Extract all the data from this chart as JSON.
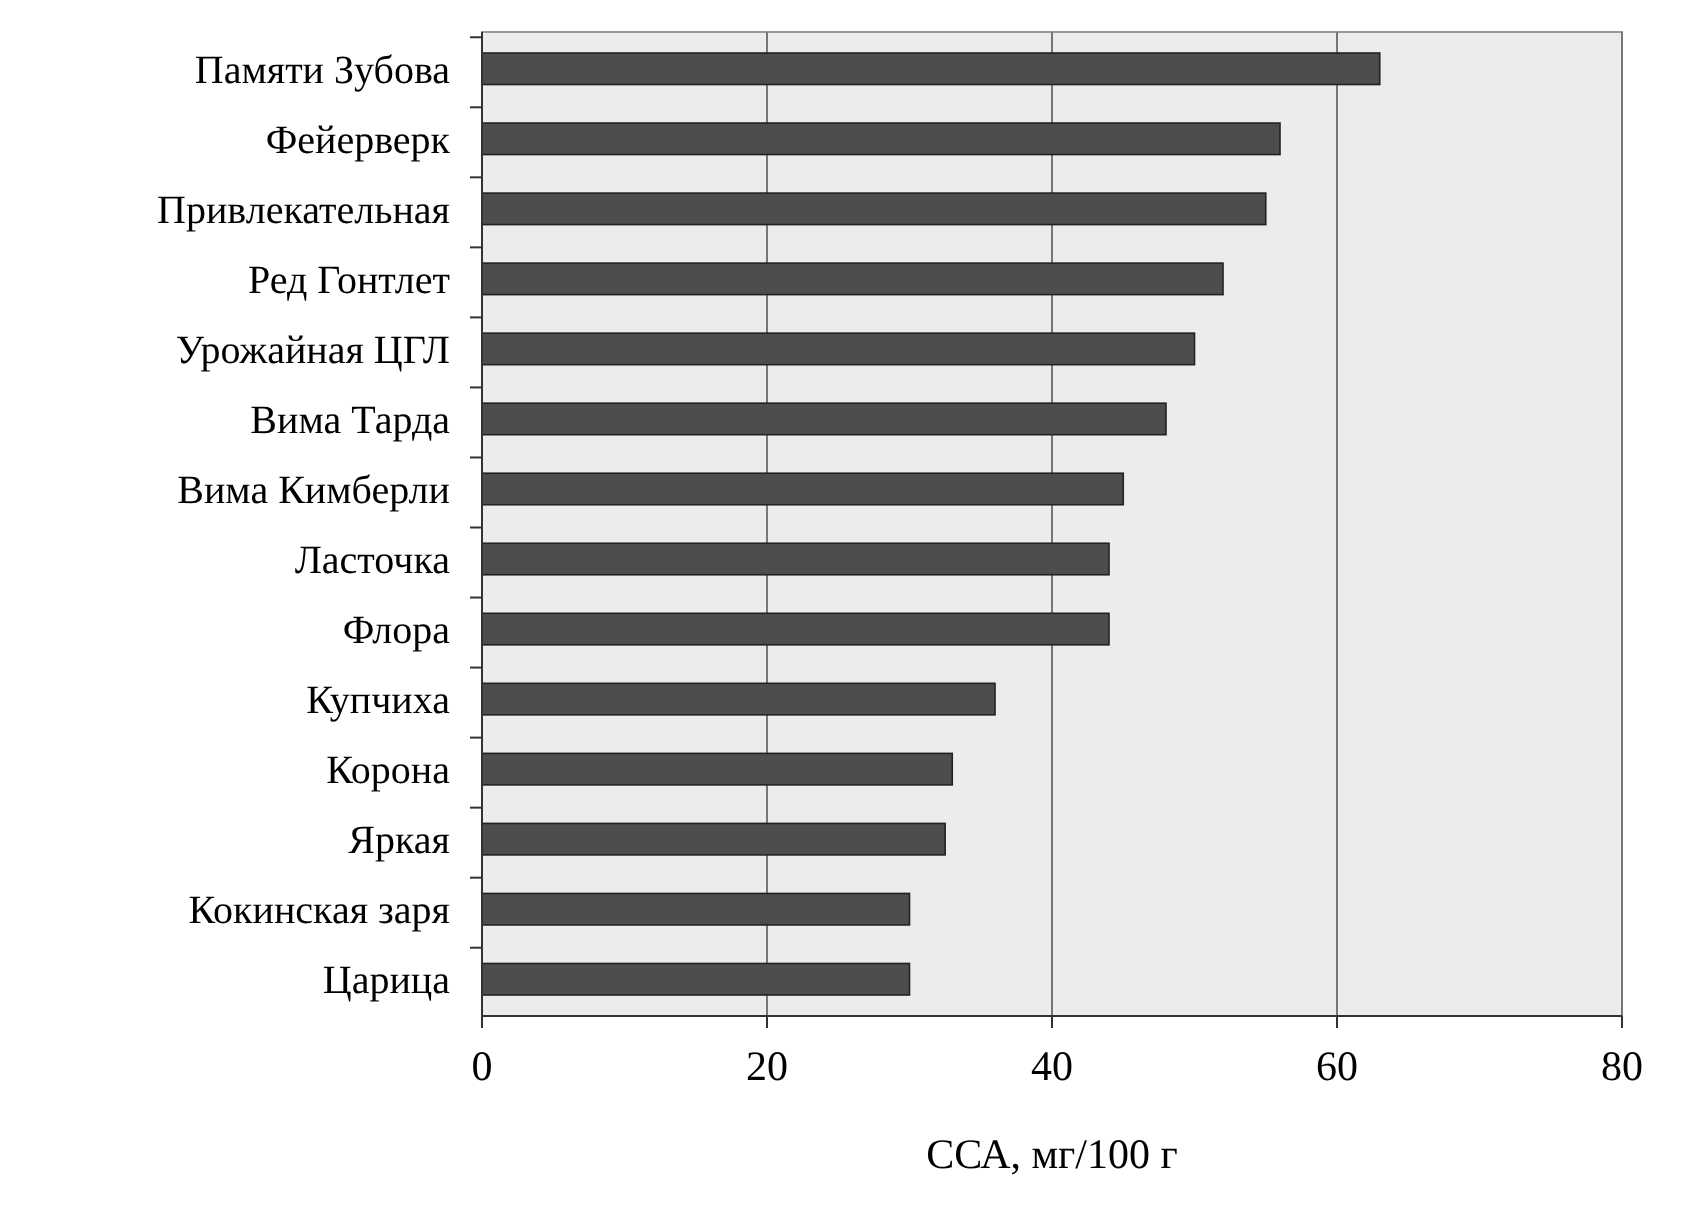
{
  "chart_data": {
    "type": "bar",
    "orientation": "horizontal",
    "xlabel": "ССА, мг/100 г",
    "categories": [
      "Памяти Зубова",
      "Фейерверк",
      "Привлекательная",
      "Ред Гонтлет",
      "Урожайная ЦГЛ",
      "Вима Тарда",
      "Вима Кимберли",
      "Ласточка",
      "Флора",
      "Купчиха",
      "Корона",
      "Яркая",
      "Кокинская заря",
      "Царица"
    ],
    "values": [
      63,
      56,
      55,
      52,
      50,
      48,
      45,
      44,
      44,
      36,
      33,
      32.5,
      30,
      30
    ],
    "color": "#4d4d4d",
    "xlim": [
      0,
      80
    ],
    "xticks": [
      0,
      20,
      40,
      60,
      80
    ],
    "grid": "x"
  }
}
